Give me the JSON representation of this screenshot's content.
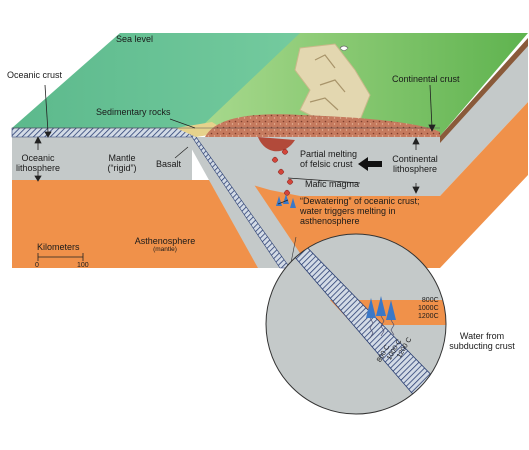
{
  "labels": {
    "sea_level": "Sea level",
    "oceanic_crust": "Oceanic crust",
    "continental_crust": "Continental crust",
    "sedimentary_rocks": "Sedimentary rocks",
    "oceanic_lithosphere_1": "Oceanic",
    "oceanic_lithosphere_2": "lithosphere",
    "mantle_1": "Mantle",
    "mantle_2": "(“rigid”)",
    "basalt": "Basalt",
    "partial_melting_1": "Partial melting",
    "partial_melting_2": "of felsic crust",
    "continental_lithosphere_1": "Continental",
    "continental_lithosphere_2": "lithosphere",
    "mafic_magma": "Mafic magma",
    "dewatering_1": "“Dewatering” of oceanic crust;",
    "dewatering_2": "water triggers melting in",
    "dewatering_3": "asthenosphere",
    "asthenosphere": "Asthenosphere",
    "asthenosphere_sub": "(mantle)",
    "water_from_1": "Water from",
    "water_from_2": "subducting crust"
  },
  "scale": {
    "title": "Kilometers",
    "min": "0",
    "max": "100"
  },
  "isotherms_right": [
    "800C",
    "1000C",
    "1200C"
  ],
  "isotherms_slab": [
    "1200 C",
    "1000 C",
    "800 C"
  ],
  "colors": {
    "ocean": "#5fbe8f",
    "land": "#7cc56a",
    "asthenosphere": "#f0914a",
    "lithosphere": "#c4c9c9",
    "crust_rock": "#c98266",
    "water_arrow": "#3b78c7"
  }
}
